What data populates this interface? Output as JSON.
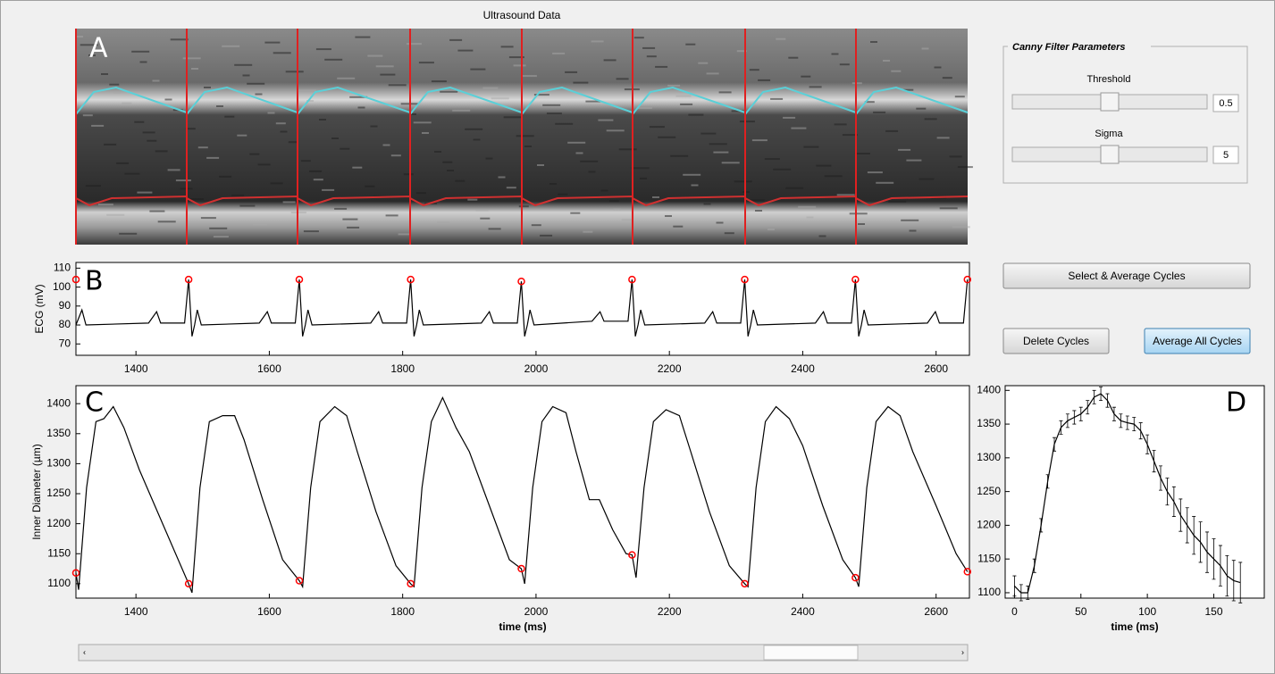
{
  "ultrasound": {
    "title": "Ultrasound Data",
    "panel_label": "A"
  },
  "controls": {
    "group_title": "Canny Filter Parameters",
    "threshold": {
      "label": "Threshold",
      "value": 0.5
    },
    "sigma": {
      "label": "Sigma",
      "value": 5
    },
    "buttons": [
      "Select & Average Cycles",
      "Delete Cycles",
      "Average All Cycles"
    ]
  },
  "chart_data": [
    {
      "type": "line",
      "panel_label": "B",
      "ylabel": "ECG (mV)",
      "xlim": [
        1310,
        2650
      ],
      "xticks": [
        1400,
        1600,
        1800,
        2000,
        2200,
        2400,
        2600
      ],
      "ylim": [
        64,
        113
      ],
      "yticks": [
        70,
        80,
        90,
        100,
        110
      ],
      "series": [
        {
          "color": "#000000",
          "x": [
            1310,
            1319,
            1325,
            1419,
            1431,
            1437,
            1473,
            1479,
            1484,
            1488,
            1492,
            1498,
            1585,
            1597,
            1603,
            1639,
            1645,
            1650,
            1654,
            1658,
            1664,
            1752,
            1764,
            1770,
            1806,
            1812,
            1817,
            1821,
            1825,
            1831,
            1918,
            1930,
            1936,
            1972,
            1978,
            1983,
            1987,
            1991,
            1997,
            2084,
            2096,
            2102,
            2138,
            2144,
            2149,
            2153,
            2157,
            2163,
            2253,
            2265,
            2271,
            2307,
            2313,
            2318,
            2322,
            2326,
            2332,
            2419,
            2431,
            2437,
            2473,
            2479,
            2484,
            2488,
            2492,
            2498,
            2587,
            2599,
            2605,
            2641,
            2647
          ],
          "values": [
            80,
            88,
            80,
            81,
            87,
            81,
            81,
            104,
            74,
            80,
            88,
            80,
            81,
            87,
            81,
            81,
            104,
            74,
            80,
            88,
            80,
            81,
            87,
            81,
            81,
            104,
            74,
            80,
            88,
            80,
            81,
            87,
            81,
            81,
            103,
            74,
            80,
            88,
            80,
            82,
            87,
            82,
            82,
            104,
            74,
            80,
            88,
            80,
            81,
            87,
            81,
            81,
            104,
            74,
            80,
            88,
            80,
            81,
            87,
            81,
            81,
            104,
            74,
            80,
            88,
            80,
            81,
            87,
            81,
            81,
            104
          ]
        },
        {
          "color": "#ff0000",
          "marker": "circle",
          "x": [
            1310,
            1479,
            1645,
            1812,
            1978,
            2144,
            2313,
            2479,
            2647
          ],
          "values": [
            104,
            104,
            104,
            104,
            103,
            104,
            104,
            104,
            104
          ]
        }
      ]
    },
    {
      "type": "line",
      "panel_label": "C",
      "ylabel": "Inner Diameter (µm)",
      "xlabel": "time (ms)",
      "xlim": [
        1310,
        2650
      ],
      "xticks": [
        1400,
        1600,
        1800,
        2000,
        2200,
        2400,
        2600
      ],
      "ylim": [
        1076,
        1430
      ],
      "yticks": [
        1100,
        1150,
        1200,
        1250,
        1300,
        1350,
        1400
      ],
      "series": [
        {
          "color": "#000000",
          "x": [
            1310,
            1314,
            1326,
            1340,
            1352,
            1366,
            1382,
            1405,
            1440,
            1479,
            1484,
            1496,
            1510,
            1530,
            1548,
            1562,
            1590,
            1620,
            1645,
            1650,
            1662,
            1676,
            1698,
            1716,
            1732,
            1760,
            1790,
            1812,
            1817,
            1829,
            1843,
            1860,
            1880,
            1900,
            1930,
            1960,
            1978,
            1983,
            1995,
            2009,
            2025,
            2045,
            2060,
            2080,
            2095,
            2115,
            2135,
            2144,
            2150,
            2162,
            2176,
            2195,
            2215,
            2232,
            2260,
            2290,
            2313,
            2318,
            2330,
            2344,
            2360,
            2380,
            2400,
            2430,
            2460,
            2479,
            2484,
            2496,
            2510,
            2528,
            2546,
            2565,
            2600,
            2630,
            2647
          ],
          "values": [
            1118,
            1090,
            1260,
            1370,
            1375,
            1395,
            1360,
            1290,
            1200,
            1100,
            1085,
            1260,
            1370,
            1380,
            1380,
            1340,
            1240,
            1140,
            1105,
            1095,
            1260,
            1370,
            1395,
            1380,
            1320,
            1220,
            1130,
            1100,
            1095,
            1260,
            1370,
            1410,
            1360,
            1320,
            1230,
            1140,
            1125,
            1100,
            1260,
            1370,
            1395,
            1385,
            1320,
            1240,
            1240,
            1190,
            1150,
            1148,
            1110,
            1260,
            1370,
            1390,
            1380,
            1320,
            1220,
            1130,
            1100,
            1095,
            1260,
            1370,
            1395,
            1375,
            1330,
            1230,
            1140,
            1110,
            1095,
            1260,
            1370,
            1395,
            1380,
            1320,
            1230,
            1150,
            1120
          ]
        },
        {
          "color": "#ff0000",
          "marker": "circle",
          "x": [
            1310,
            1479,
            1645,
            1812,
            1978,
            2144,
            2313,
            2479,
            2647
          ],
          "values": [
            1118,
            1100,
            1105,
            1100,
            1125,
            1148,
            1100,
            1110,
            1120
          ]
        }
      ]
    },
    {
      "type": "errorbar",
      "panel_label": "D",
      "xlabel": "time (ms)",
      "xlim": [
        -7,
        188
      ],
      "xticks": [
        0,
        50,
        100,
        150
      ],
      "ylim": [
        1092,
        1407
      ],
      "yticks": [
        1100,
        1150,
        1200,
        1250,
        1300,
        1350,
        1400
      ],
      "series": [
        {
          "color": "#000000",
          "x": [
            0,
            5,
            10,
            15,
            20,
            25,
            30,
            35,
            40,
            45,
            50,
            55,
            60,
            65,
            70,
            75,
            80,
            85,
            90,
            95,
            100,
            105,
            110,
            115,
            120,
            125,
            130,
            135,
            140,
            145,
            150,
            155,
            160,
            165,
            170
          ],
          "values": [
            1110,
            1100,
            1100,
            1140,
            1200,
            1265,
            1320,
            1345,
            1355,
            1360,
            1365,
            1375,
            1390,
            1395,
            1385,
            1365,
            1355,
            1352,
            1350,
            1340,
            1320,
            1295,
            1270,
            1250,
            1235,
            1215,
            1200,
            1185,
            1175,
            1160,
            1150,
            1140,
            1125,
            1118,
            1115
          ],
          "errors": [
            15,
            12,
            10,
            10,
            10,
            10,
            10,
            10,
            10,
            10,
            10,
            10,
            10,
            10,
            10,
            10,
            10,
            10,
            10,
            12,
            14,
            16,
            18,
            20,
            22,
            24,
            26,
            28,
            30,
            30,
            30,
            30,
            30,
            30,
            30
          ]
        }
      ]
    }
  ]
}
